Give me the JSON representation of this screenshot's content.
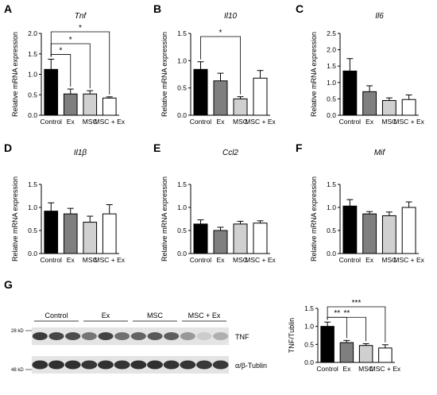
{
  "bar_colors": [
    "#000000",
    "#7f7f7f",
    "#d0d0d0",
    "#ffffff"
  ],
  "chart_data": [
    {
      "panel": "A",
      "title": "Tnf",
      "type": "bar",
      "categories": [
        "Control",
        "Ex",
        "MSC",
        "MSC + Ex"
      ],
      "values": [
        1.12,
        0.52,
        0.52,
        0.42
      ],
      "errors": [
        0.25,
        0.12,
        0.08,
        0.03
      ],
      "ylabel": "Relative mRNA expression",
      "ylim": [
        0,
        2.0
      ],
      "yticks": [
        "0.0",
        "0.5",
        "1.0",
        "1.5",
        "2.0"
      ],
      "significance": [
        {
          "from": 0,
          "to": 1,
          "label": "*"
        },
        {
          "from": 0,
          "to": 2,
          "label": "*"
        },
        {
          "from": 0,
          "to": 3,
          "label": "*"
        }
      ]
    },
    {
      "panel": "B",
      "title": "Il10",
      "type": "bar",
      "categories": [
        "Control",
        "Ex",
        "MSC",
        "MSC + Ex"
      ],
      "values": [
        0.84,
        0.63,
        0.3,
        0.68
      ],
      "errors": [
        0.14,
        0.14,
        0.04,
        0.14
      ],
      "ylabel": "Relative mRNA expression",
      "ylim": [
        0,
        1.5
      ],
      "yticks": [
        "0.0",
        "0.5",
        "1.0",
        "1.5"
      ],
      "significance": [
        {
          "from": 0,
          "to": 2,
          "label": "*"
        }
      ]
    },
    {
      "panel": "C",
      "title": "Il6",
      "type": "bar",
      "categories": [
        "Control",
        "Ex",
        "MSC",
        "MSC + Ex"
      ],
      "values": [
        1.35,
        0.72,
        0.45,
        0.48
      ],
      "errors": [
        0.38,
        0.18,
        0.08,
        0.14
      ],
      "ylabel": "Relative mRNA expression",
      "ylim": [
        0,
        2.5
      ],
      "yticks": [
        "0.0",
        "0.5",
        "1.0",
        "1.5",
        "2.0",
        "2.5"
      ],
      "significance": []
    },
    {
      "panel": "D",
      "title": "Il1β",
      "type": "bar",
      "categories": [
        "Control",
        "Ex",
        "MSC",
        "MSC + Ex"
      ],
      "values": [
        0.92,
        0.86,
        0.68,
        0.86
      ],
      "errors": [
        0.18,
        0.12,
        0.13,
        0.2
      ],
      "ylabel": "Relative mRNA expression",
      "ylim": [
        0,
        1.5
      ],
      "yticks": [
        "0.0",
        "0.5",
        "1.0",
        "1.5"
      ],
      "significance": []
    },
    {
      "panel": "E",
      "title": "Ccl2",
      "type": "bar",
      "categories": [
        "Control",
        "Ex",
        "MSC",
        "MSC + Ex"
      ],
      "values": [
        0.64,
        0.5,
        0.64,
        0.66
      ],
      "errors": [
        0.09,
        0.07,
        0.06,
        0.05
      ],
      "ylabel": "Relative mRNA expression",
      "ylim": [
        0,
        1.5
      ],
      "yticks": [
        "0.0",
        "0.5",
        "1.0",
        "1.5"
      ],
      "significance": []
    },
    {
      "panel": "F",
      "title": "Mif",
      "type": "bar",
      "categories": [
        "Control",
        "Ex",
        "MSC",
        "MSC + Ex"
      ],
      "values": [
        1.03,
        0.86,
        0.82,
        1.0
      ],
      "errors": [
        0.14,
        0.05,
        0.08,
        0.12
      ],
      "ylabel": "Relative mRNA expression",
      "ylim": [
        0,
        1.5
      ],
      "yticks": [
        "0.0",
        "0.5",
        "1.0",
        "1.5"
      ],
      "significance": []
    },
    {
      "panel": "G",
      "title": "",
      "type": "bar",
      "categories": [
        "Control",
        "Ex",
        "MSC",
        "MSC + Ex"
      ],
      "values": [
        1.0,
        0.55,
        0.47,
        0.4
      ],
      "errors": [
        0.12,
        0.06,
        0.05,
        0.09
      ],
      "ylabel": "TNF/Tublin",
      "ylim": [
        0,
        1.5
      ],
      "yticks": [
        "0.0",
        "0.5",
        "1.0",
        "1.5"
      ],
      "significance": [
        {
          "from": 0,
          "to": 1,
          "label": "**"
        },
        {
          "from": 0,
          "to": 2,
          "label": "**"
        },
        {
          "from": 0,
          "to": 3,
          "label": "***"
        }
      ]
    }
  ],
  "blot": {
    "panel": "G",
    "groups": [
      "Control",
      "Ex",
      "MSC",
      "MSC + Ex"
    ],
    "lanes": [
      {
        "group": 0,
        "tnf": 0.85,
        "tub": 0.9
      },
      {
        "group": 0,
        "tnf": 0.8,
        "tub": 0.9
      },
      {
        "group": 0,
        "tnf": 0.78,
        "tub": 0.9
      },
      {
        "group": 1,
        "tnf": 0.6,
        "tub": 0.88
      },
      {
        "group": 1,
        "tnf": 0.82,
        "tub": 0.9
      },
      {
        "group": 1,
        "tnf": 0.62,
        "tub": 0.88
      },
      {
        "group": 2,
        "tnf": 0.68,
        "tub": 0.9
      },
      {
        "group": 2,
        "tnf": 0.72,
        "tub": 0.9
      },
      {
        "group": 2,
        "tnf": 0.7,
        "tub": 0.88
      },
      {
        "group": 3,
        "tnf": 0.45,
        "tub": 0.88
      },
      {
        "group": 3,
        "tnf": 0.22,
        "tub": 0.86
      },
      {
        "group": 3,
        "tnf": 0.35,
        "tub": 0.86
      }
    ],
    "marker_top": "28 kD",
    "marker_bottom": "48 kD",
    "band_top": "TNF",
    "band_bottom": "α/β-Tublin"
  }
}
